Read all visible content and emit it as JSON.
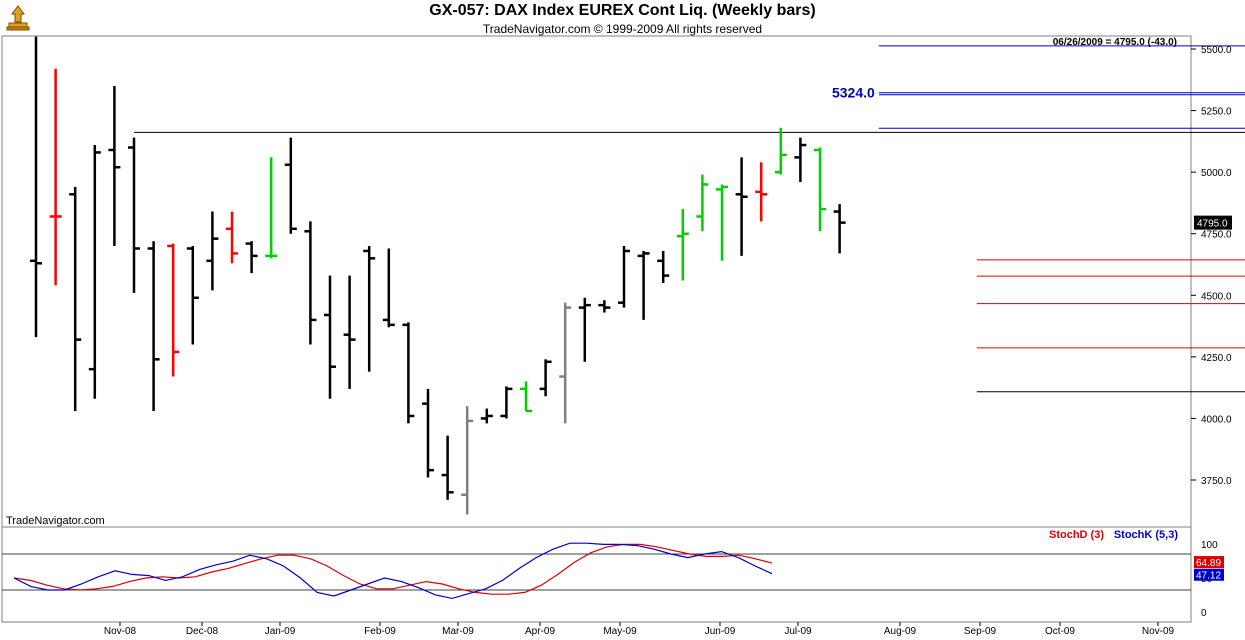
{
  "header": {
    "title": "GX-057:  DAX Index EUREX Cont Liq.  (Weekly bars)",
    "subtitle": "TradeNavigator.com © 1999-2009 All rights reserved",
    "last_info": "06/26/2009 = 4795.0 (-43.0)",
    "credit": "TradeNavigator.com"
  },
  "colors": {
    "bar_default": "#000000",
    "bar_down": "#ff0000",
    "bar_up": "#00d000",
    "bar_gray": "#808080",
    "blue_level": "#0000cc",
    "red_level": "#dd0000",
    "stoch_d": "#dd0000",
    "stoch_k": "#0000cc"
  },
  "chart_data": {
    "type": "bar",
    "y_ticks": [
      "5500.0",
      "5250.0",
      "5000.0",
      "4750.0",
      "4500.0",
      "4250.0",
      "4000.0",
      "3750.0"
    ],
    "x_ticks": [
      "Nov-08",
      "Dec-08",
      "Jan-09",
      "Feb-09",
      "Mar-09",
      "Apr-09",
      "May-09",
      "Jun-09",
      "Jul-09",
      "Aug-09",
      "Sep-09",
      "Oct-09",
      "Nov-09"
    ],
    "last_price_label": "4795.0",
    "bars": [
      {
        "o": 4640,
        "h": 5550,
        "l": 4330,
        "c": 4630,
        "col": "k"
      },
      {
        "o": 4820,
        "h": 5420,
        "l": 4540,
        "c": 4820,
        "col": "r"
      },
      {
        "o": 4910,
        "h": 4940,
        "l": 4030,
        "c": 4320,
        "col": "k"
      },
      {
        "o": 4200,
        "h": 5110,
        "l": 4080,
        "c": 5080,
        "col": "k"
      },
      {
        "o": 5090,
        "h": 5350,
        "l": 4700,
        "c": 5020,
        "col": "k"
      },
      {
        "o": 5100,
        "h": 5140,
        "l": 4510,
        "c": 4690,
        "col": "k"
      },
      {
        "o": 4690,
        "h": 4720,
        "l": 4030,
        "c": 4240,
        "col": "k"
      },
      {
        "o": 4700,
        "h": 4710,
        "l": 4170,
        "c": 4270,
        "col": "r"
      },
      {
        "o": 4690,
        "h": 4700,
        "l": 4300,
        "c": 4490,
        "col": "k"
      },
      {
        "o": 4640,
        "h": 4840,
        "l": 4520,
        "c": 4730,
        "col": "k"
      },
      {
        "o": 4770,
        "h": 4840,
        "l": 4630,
        "c": 4670,
        "col": "r"
      },
      {
        "o": 4710,
        "h": 4720,
        "l": 4590,
        "c": 4660,
        "col": "k"
      },
      {
        "o": 4660,
        "h": 5060,
        "l": 4650,
        "c": 4660,
        "col": "g"
      },
      {
        "o": 5030,
        "h": 5140,
        "l": 4750,
        "c": 4770,
        "col": "k"
      },
      {
        "o": 4760,
        "h": 4800,
        "l": 4300,
        "c": 4400,
        "col": "k"
      },
      {
        "o": 4420,
        "h": 4580,
        "l": 4080,
        "c": 4210,
        "col": "k"
      },
      {
        "o": 4340,
        "h": 4580,
        "l": 4120,
        "c": 4320,
        "col": "k"
      },
      {
        "o": 4680,
        "h": 4700,
        "l": 4190,
        "c": 4650,
        "col": "k"
      },
      {
        "o": 4400,
        "h": 4690,
        "l": 4370,
        "c": 4380,
        "col": "k"
      },
      {
        "o": 4380,
        "h": 4390,
        "l": 3980,
        "c": 4010,
        "col": "k"
      },
      {
        "o": 4060,
        "h": 4120,
        "l": 3760,
        "c": 3790,
        "col": "k"
      },
      {
        "o": 3770,
        "h": 3930,
        "l": 3670,
        "c": 3700,
        "col": "k"
      },
      {
        "o": 3690,
        "h": 4050,
        "l": 3610,
        "c": 3990,
        "col": "gray"
      },
      {
        "o": 4000,
        "h": 4040,
        "l": 3980,
        "c": 4010,
        "col": "k"
      },
      {
        "o": 4010,
        "h": 4130,
        "l": 4000,
        "c": 4120,
        "col": "k"
      },
      {
        "o": 4120,
        "h": 4150,
        "l": 4030,
        "c": 4030,
        "col": "g"
      },
      {
        "o": 4120,
        "h": 4240,
        "l": 4090,
        "c": 4230,
        "col": "k"
      },
      {
        "o": 4170,
        "h": 4470,
        "l": 3980,
        "c": 4450,
        "col": "gray"
      },
      {
        "o": 4450,
        "h": 4490,
        "l": 4230,
        "c": 4460,
        "col": "k"
      },
      {
        "o": 4460,
        "h": 4480,
        "l": 4430,
        "c": 4450,
        "col": "k"
      },
      {
        "o": 4470,
        "h": 4700,
        "l": 4450,
        "c": 4680,
        "col": "k"
      },
      {
        "o": 4660,
        "h": 4680,
        "l": 4400,
        "c": 4670,
        "col": "k"
      },
      {
        "o": 4640,
        "h": 4680,
        "l": 4550,
        "c": 4580,
        "col": "k"
      },
      {
        "o": 4740,
        "h": 4850,
        "l": 4560,
        "c": 4750,
        "col": "g"
      },
      {
        "o": 4820,
        "h": 4990,
        "l": 4760,
        "c": 4950,
        "col": "g"
      },
      {
        "o": 4930,
        "h": 4950,
        "l": 4640,
        "c": 4940,
        "col": "g"
      },
      {
        "o": 4910,
        "h": 5060,
        "l": 4660,
        "c": 4900,
        "col": "k"
      },
      {
        "o": 4920,
        "h": 5040,
        "l": 4800,
        "c": 4910,
        "col": "r"
      },
      {
        "o": 5000,
        "h": 5180,
        "l": 4990,
        "c": 5070,
        "col": "g"
      },
      {
        "o": 5060,
        "h": 5140,
        "l": 4960,
        "c": 5110,
        "col": "k"
      },
      {
        "o": 5090,
        "h": 5100,
        "l": 4760,
        "c": 4850,
        "col": "g"
      },
      {
        "o": 4840,
        "h": 4870,
        "l": 4670,
        "c": 4795,
        "col": "k"
      }
    ],
    "levels": [
      {
        "label": "5512.5",
        "value": 5512.5,
        "color": "blue",
        "x_start": 43,
        "x_end": 62,
        "lines": 1
      },
      {
        "label": "5314.0",
        "value": 5314.0,
        "color": "blue",
        "x_start": 43,
        "x_end": 62,
        "lines": 2
      },
      {
        "label": "5324.0",
        "value": 5324.0,
        "color": "blue",
        "label_side": "left",
        "x_start": 43,
        "x_end": 62,
        "lines": 0
      },
      {
        "label": "5178.0",
        "value": 5178.0,
        "color": "blue",
        "x_start": 43,
        "x_end": 62,
        "lines": 1
      },
      {
        "label": "5161.5",
        "value": 5161.5,
        "color": "black",
        "x_start": 5,
        "x_end": 62,
        "lines": 1
      },
      {
        "label": "4644.0",
        "value": 4644.0,
        "color": "red",
        "x_start": 48,
        "x_end": 62,
        "lines": 1
      },
      {
        "label": "4578.0",
        "value": 4578.0,
        "color": "red",
        "x_start": 48,
        "x_end": 62,
        "lines": 1
      },
      {
        "label": "4466.0",
        "value": 4466.0,
        "color": "red",
        "x_start": 48,
        "x_end": 62,
        "lines": 1
      },
      {
        "label": "4286.5",
        "value": 4286.5,
        "color": "red",
        "x_start": 48,
        "x_end": 62,
        "lines": 1
      },
      {
        "label": "4108.5",
        "value": 4108.5,
        "color": "black",
        "x_start": 48,
        "x_end": 62,
        "lines": 1
      }
    ],
    "stochastic": {
      "stoch_d_label": "StochD (3)",
      "stoch_k_label": "StochK (5,3)",
      "y_ticks": [
        "100",
        "50",
        "0"
      ],
      "d_last_label": "64.89",
      "k_last_label": "47.12",
      "stoch_d": [
        40,
        36,
        28,
        22,
        20,
        22,
        26,
        34,
        40,
        42,
        40,
        42,
        50,
        56,
        64,
        72,
        78,
        78,
        72,
        60,
        44,
        30,
        22,
        22,
        28,
        34,
        30,
        22,
        16,
        13,
        13,
        16,
        28,
        46,
        66,
        82,
        92,
        96,
        96,
        92,
        86,
        80,
        76,
        76,
        78,
        72,
        64.89
      ],
      "stoch_k": [
        40,
        26,
        20,
        20,
        30,
        42,
        52,
        46,
        44,
        36,
        42,
        54,
        62,
        68,
        78,
        72,
        60,
        40,
        16,
        10,
        20,
        30,
        40,
        34,
        24,
        12,
        6,
        14,
        22,
        36,
        56,
        74,
        88,
        98,
        98,
        96,
        96,
        94,
        88,
        80,
        74,
        80,
        84,
        74,
        60,
        47.12
      ]
    }
  }
}
